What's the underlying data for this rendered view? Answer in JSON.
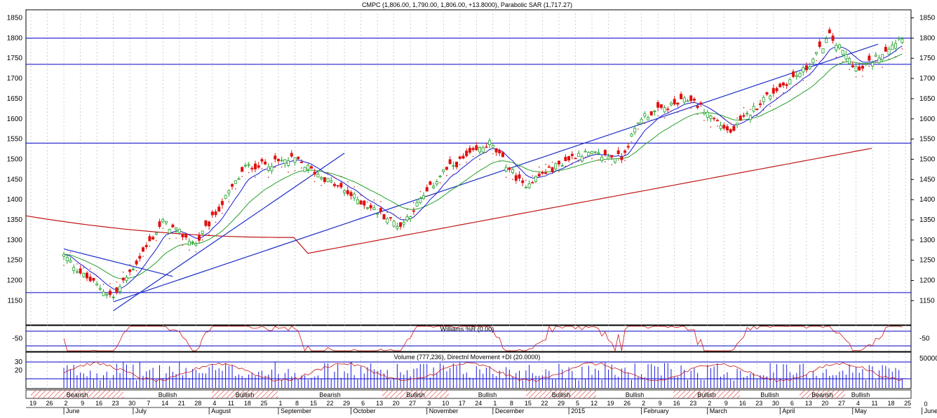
{
  "colors": {
    "up": "#22a02a",
    "down": "#e01010",
    "hline": "#0000c8",
    "trend": "#1a2ec8",
    "ma_long": "#c01818",
    "ma_mid": "#26a02a",
    "ma_short": "#1a1ad0",
    "sar": "#d02020",
    "williams": "#d01818",
    "volume": "#1a1ae0",
    "dmi": "#c81818",
    "grid": "#b4b4b4"
  },
  "chart_data": [
    {
      "type": "candlestick",
      "title": "CMPC (1,806.00, 1,790.00, 1,806.00, +13.8000), Parabolic SAR (1,717.27)",
      "ylim": [
        1090,
        1870
      ],
      "yticks": [
        1150,
        1200,
        1250,
        1300,
        1350,
        1400,
        1450,
        1500,
        1550,
        1600,
        1650,
        1700,
        1750,
        1800,
        1850
      ],
      "horizontal_levels": [
        1800,
        1735,
        1540,
        1170
      ],
      "trendlines": [
        {
          "from": [
            "Jun 23",
            1125
          ],
          "to": [
            "Sep 29",
            1515
          ]
        },
        {
          "from": [
            "Jun 23",
            1147
          ],
          "to": [
            "May 25",
            1785
          ]
        },
        {
          "from": [
            "Jun 2",
            1278
          ],
          "to": [
            "Jul 17",
            1210
          ]
        }
      ],
      "ohlc_anchors": [
        {
          "date": "Jun 2",
          "close": 1262
        },
        {
          "date": "Jun 10",
          "close": 1212
        },
        {
          "date": "Jun 23",
          "close": 1158
        },
        {
          "date": "Jul 14",
          "close": 1345
        },
        {
          "date": "Jul 28",
          "close": 1290
        },
        {
          "date": "Aug 18",
          "close": 1480
        },
        {
          "date": "Sep 8",
          "close": 1500
        },
        {
          "date": "Oct 6",
          "close": 1395
        },
        {
          "date": "Oct 22",
          "close": 1335
        },
        {
          "date": "Nov 10",
          "close": 1470
        },
        {
          "date": "Nov 28",
          "close": 1540
        },
        {
          "date": "Dec 12",
          "close": 1435
        },
        {
          "date": "Jan 6",
          "close": 1515
        },
        {
          "date": "Jan 23",
          "close": 1505
        },
        {
          "date": "Feb 2",
          "close": 1605
        },
        {
          "date": "Feb 23",
          "close": 1650
        },
        {
          "date": "Mar 11",
          "close": 1565
        },
        {
          "date": "Mar 25",
          "close": 1650
        },
        {
          "date": "Apr 13",
          "close": 1725
        },
        {
          "date": "Apr 22",
          "close": 1805
        },
        {
          "date": "May 5",
          "close": 1718
        },
        {
          "date": "May 22",
          "close": 1806
        }
      ]
    },
    {
      "type": "line",
      "title": "Williams %R (0.00)",
      "ylim": [
        -100,
        0
      ],
      "yticks": [
        -50
      ],
      "horizontal_levels": [
        -20,
        -80
      ]
    },
    {
      "type": "bar",
      "title": "Volume (777,236), Directnl Movement +DI (20.0000)",
      "yticks_left": [
        20,
        30
      ],
      "yticks_right": [
        50000
      ],
      "horizontal_levels_left": [
        30,
        10
      ]
    }
  ],
  "axis": {
    "days": [
      "19",
      "26",
      "2",
      "9",
      "16",
      "23",
      "30",
      "7",
      "14",
      "21",
      "28",
      "4",
      "11",
      "18",
      "25",
      "1",
      "8",
      "15",
      "22",
      "29",
      "6",
      "13",
      "20",
      "27",
      "3",
      "10",
      "17",
      "24",
      "1",
      "8",
      "15",
      "22",
      "29",
      "5",
      "12",
      "19",
      "26",
      "2",
      "9",
      "16",
      "23",
      "2",
      "9",
      "16",
      "23",
      "30",
      "6",
      "13",
      "20",
      "27",
      "4",
      "11",
      "18",
      "25"
    ],
    "months": [
      "June",
      "July",
      "August",
      "September",
      "October",
      "November",
      "December",
      "2015",
      "February",
      "March",
      "April",
      "May",
      "June"
    ],
    "regimes": [
      {
        "label": "Bearish",
        "shaded": true
      },
      {
        "label": "Bullish",
        "shaded": false
      },
      {
        "label": "Bullish",
        "shaded": true
      },
      {
        "label": "Bearish",
        "shaded": false
      },
      {
        "label": "Bullish",
        "shaded": true
      },
      {
        "label": "Bullish",
        "shaded": false
      },
      {
        "label": "Bullish",
        "shaded": true
      },
      {
        "label": "Bullish",
        "shaded": false
      },
      {
        "label": "Bullish",
        "shaded": true
      },
      {
        "label": "Bullish",
        "shaded": false
      },
      {
        "label": "Bearish",
        "shaded": true
      },
      {
        "label": "Bullish",
        "shaded": false
      }
    ],
    "corner_label": "0"
  }
}
